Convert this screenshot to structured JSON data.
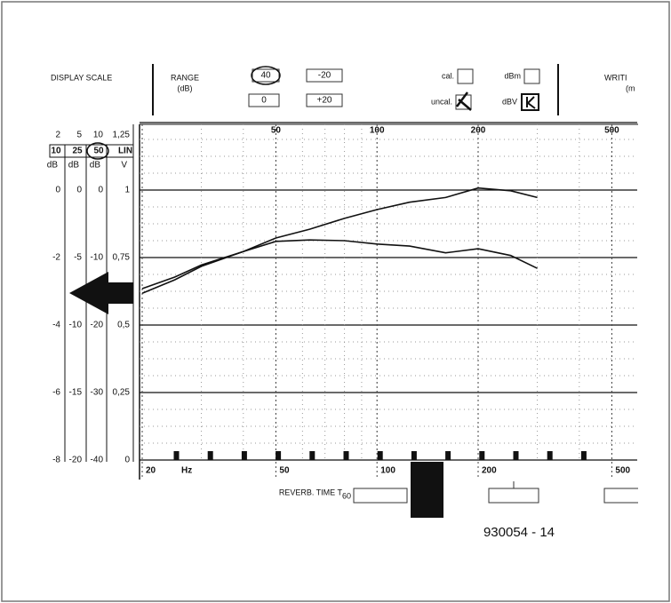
{
  "chart_data": {
    "type": "line",
    "header": {
      "display_scale": "DISPLAY SCALE",
      "range": "RANGE",
      "range_unit": "(dB)",
      "range_buttons": [
        "40",
        "-20",
        "0",
        "+20"
      ],
      "cal": "cal.",
      "dbm": "dBm",
      "uncal": "uncal.",
      "dbv": "dBV",
      "writing": "WRITI",
      "writing_unit": "(m"
    },
    "scales": [
      {
        "name": "10",
        "unit": "dB",
        "lim": [
          -8,
          2
        ],
        "ticks": [
          2,
          0,
          -2,
          -4,
          -6,
          -8
        ]
      },
      {
        "name": "25",
        "unit": "dB",
        "lim": [
          -20,
          5
        ],
        "ticks": [
          5,
          0,
          -5,
          -10,
          -15,
          -20
        ]
      },
      {
        "name": "50",
        "unit": "dB",
        "lim": [
          -40,
          10
        ],
        "ticks": [
          10,
          0,
          -10,
          -20,
          -30,
          -40
        ]
      },
      {
        "name": "LIN",
        "unit": "V",
        "lim": [
          0,
          1.25
        ],
        "ticks": [
          {
            "value": 1.25,
            "label": "1,25"
          },
          1,
          {
            "value": 0.75,
            "label": "0,75"
          },
          {
            "value": 0.5,
            "label": "0,5"
          },
          {
            "value": 0.25,
            "label": "0,25"
          },
          0
        ]
      }
    ],
    "x_unit": "Hz",
    "xlog": true,
    "xlim": [
      20,
      595
    ],
    "xticks": [
      20,
      50,
      100,
      200,
      500
    ],
    "ylim": [
      -40,
      10
    ],
    "yticks": [
      -40,
      -30,
      -20,
      -10,
      0,
      10
    ],
    "x": [
      20,
      25,
      30,
      40,
      50,
      63,
      80,
      100,
      125,
      160,
      200,
      250,
      300
    ],
    "series": [
      {
        "color": "#111111",
        "values": [
          -15.3,
          -13.3,
          -11.3,
          -9.1,
          -7.1,
          -5.8,
          -4.2,
          -2.9,
          -1.8,
          -1.1,
          0.3,
          -0.1,
          -1.1
        ]
      },
      {
        "color": "#111111",
        "values": [
          -14.6,
          -12.9,
          -11.1,
          -9.1,
          -7.6,
          -7.4,
          -7.5,
          -8.0,
          -8.3,
          -9.3,
          -8.7,
          -9.7,
          -11.6
        ]
      }
    ],
    "reverb_label": "REVERB. TIME T",
    "reverb_sub": "60",
    "figure_id": "930054 - 14"
  }
}
